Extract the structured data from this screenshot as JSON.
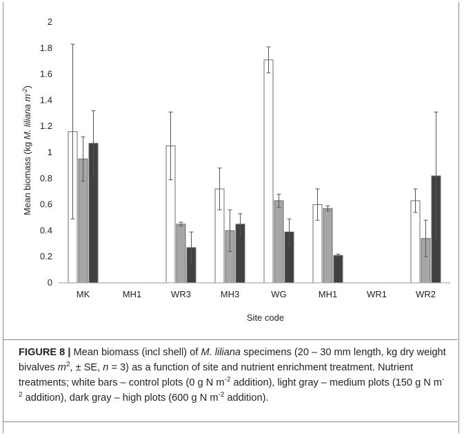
{
  "chart_data": {
    "type": "bar",
    "xlabel": "Site code",
    "ylabel_parts": {
      "prefix": "Mean biomass (kg ",
      "species": "M. liliana",
      "unit": " m",
      "unit_sup": "-2",
      "suffix": ")"
    },
    "ylim": [
      0,
      2
    ],
    "yticks": [
      "0",
      "0.2",
      "0.4",
      "0.6",
      "0.8",
      "1",
      "1.2",
      "1.4",
      "1.6",
      "1.8",
      "2"
    ],
    "categories": [
      "MK",
      "MH1",
      "WR3",
      "MH3",
      "WG",
      "MH1",
      "WR1",
      "WR2"
    ],
    "series": [
      {
        "color": "#ffffff",
        "values": [
          1.16,
          null,
          1.05,
          0.72,
          1.71,
          0.6,
          null,
          0.63
        ],
        "errors": [
          0.67,
          null,
          0.26,
          0.16,
          0.1,
          0.12,
          null,
          0.09
        ]
      },
      {
        "color": "#a6a6a6",
        "values": [
          0.95,
          null,
          0.45,
          0.4,
          0.63,
          0.57,
          null,
          0.34
        ],
        "errors": [
          0.17,
          null,
          0.015,
          0.16,
          0.05,
          0.02,
          null,
          0.14
        ]
      },
      {
        "color": "#404040",
        "values": [
          1.07,
          null,
          0.27,
          0.45,
          0.39,
          0.21,
          null,
          0.82
        ],
        "errors": [
          0.25,
          null,
          0.12,
          0.08,
          0.1,
          0.01,
          null,
          0.49
        ]
      }
    ],
    "grid": false,
    "legend": "none"
  },
  "caption": {
    "figure_label": "FIGURE 8 |",
    "t1": " Mean biomass (incl shell) of ",
    "species": "M. liliana",
    "t2": " specimens (20 – 30 mm length, kg dry weight bivalves ",
    "m": "m",
    "m_sup": "2",
    "t3": ", ± SE, ",
    "n": "n",
    "t4": " = 3) as a function of site and nutrient enrichment treatment. Nutrient treatments; white bars – control plots (0 g N m",
    "sup1": "-2",
    "t5": " addition), light gray – medium plots (150 g N m",
    "sup2": "-2",
    "t6": " addition), dark gray – high plots (600 g N m",
    "sup3": "-2",
    "t7": " addition)."
  }
}
